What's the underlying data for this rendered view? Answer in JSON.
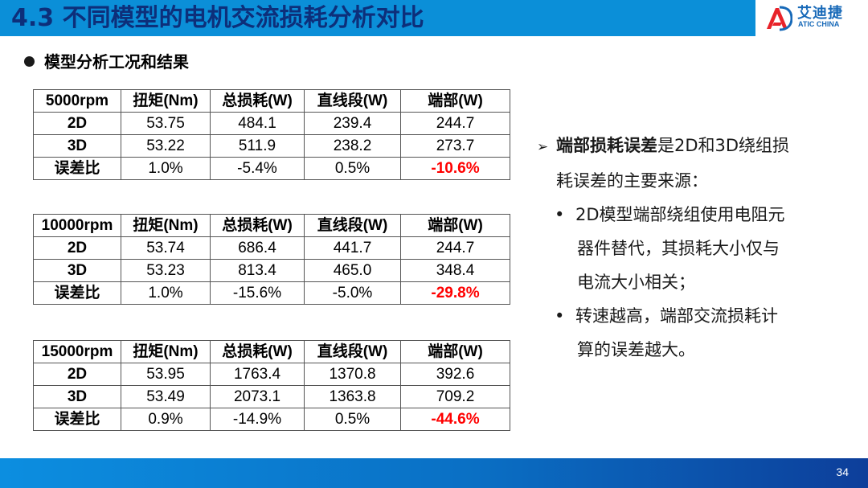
{
  "header": {
    "title": "4.3 不同模型的电机交流损耗分析对比",
    "logo_cn": "艾迪捷",
    "logo_en": "ATIC CHINA"
  },
  "section": {
    "bullet": "模型分析工况和结果"
  },
  "tables": [
    {
      "headers": [
        "5000rpm",
        "扭矩(Nm)",
        "总损耗(W)",
        "直线段(W)",
        "端部(W)"
      ],
      "rows": [
        [
          "2D",
          "53.75",
          "484.1",
          "239.4",
          "244.7"
        ],
        [
          "3D",
          "53.22",
          "511.9",
          "238.2",
          "273.7"
        ],
        [
          "误差比",
          "1.0%",
          "-5.4%",
          "0.5%",
          "-10.6%"
        ]
      ]
    },
    {
      "headers": [
        "10000rpm",
        "扭矩(Nm)",
        "总损耗(W)",
        "直线段(W)",
        "端部(W)"
      ],
      "rows": [
        [
          "2D",
          "53.74",
          "686.4",
          "441.7",
          "244.7"
        ],
        [
          "3D",
          "53.23",
          "813.4",
          "465.0",
          "348.4"
        ],
        [
          "误差比",
          "1.0%",
          "-15.6%",
          "-5.0%",
          "-29.8%"
        ]
      ]
    },
    {
      "headers": [
        "15000rpm",
        "扭矩(Nm)",
        "总损耗(W)",
        "直线段(W)",
        "端部(W)"
      ],
      "rows": [
        [
          "2D",
          "53.95",
          "1763.4",
          "1370.8",
          "392.6"
        ],
        [
          "3D",
          "53.49",
          "2073.1",
          "1363.8",
          "709.2"
        ],
        [
          "误差比",
          "0.9%",
          "-14.9%",
          "0.5%",
          "-44.6%"
        ]
      ]
    }
  ],
  "notes": {
    "arrow": "➢",
    "main_bold": "端部损耗误差",
    "main_rest_1": "是2D和3D绕组损",
    "main_rest_2": "耗误差的主要来源：",
    "bullet_char": "•",
    "point1_line1": "2D模型端部绕组使用电阻元",
    "point1_line2": "器件替代，其损耗大小仅与",
    "point1_line3": "电流大小相关；",
    "point2_line1": "转速越高，端部交流损耗计",
    "point2_line2": "算的误差越大。"
  },
  "footer": {
    "page_number": "34"
  },
  "colors": {
    "header_bar": "#0b8fd8",
    "title_text": "#0d2f7a",
    "highlight_red": "#ff0000"
  }
}
